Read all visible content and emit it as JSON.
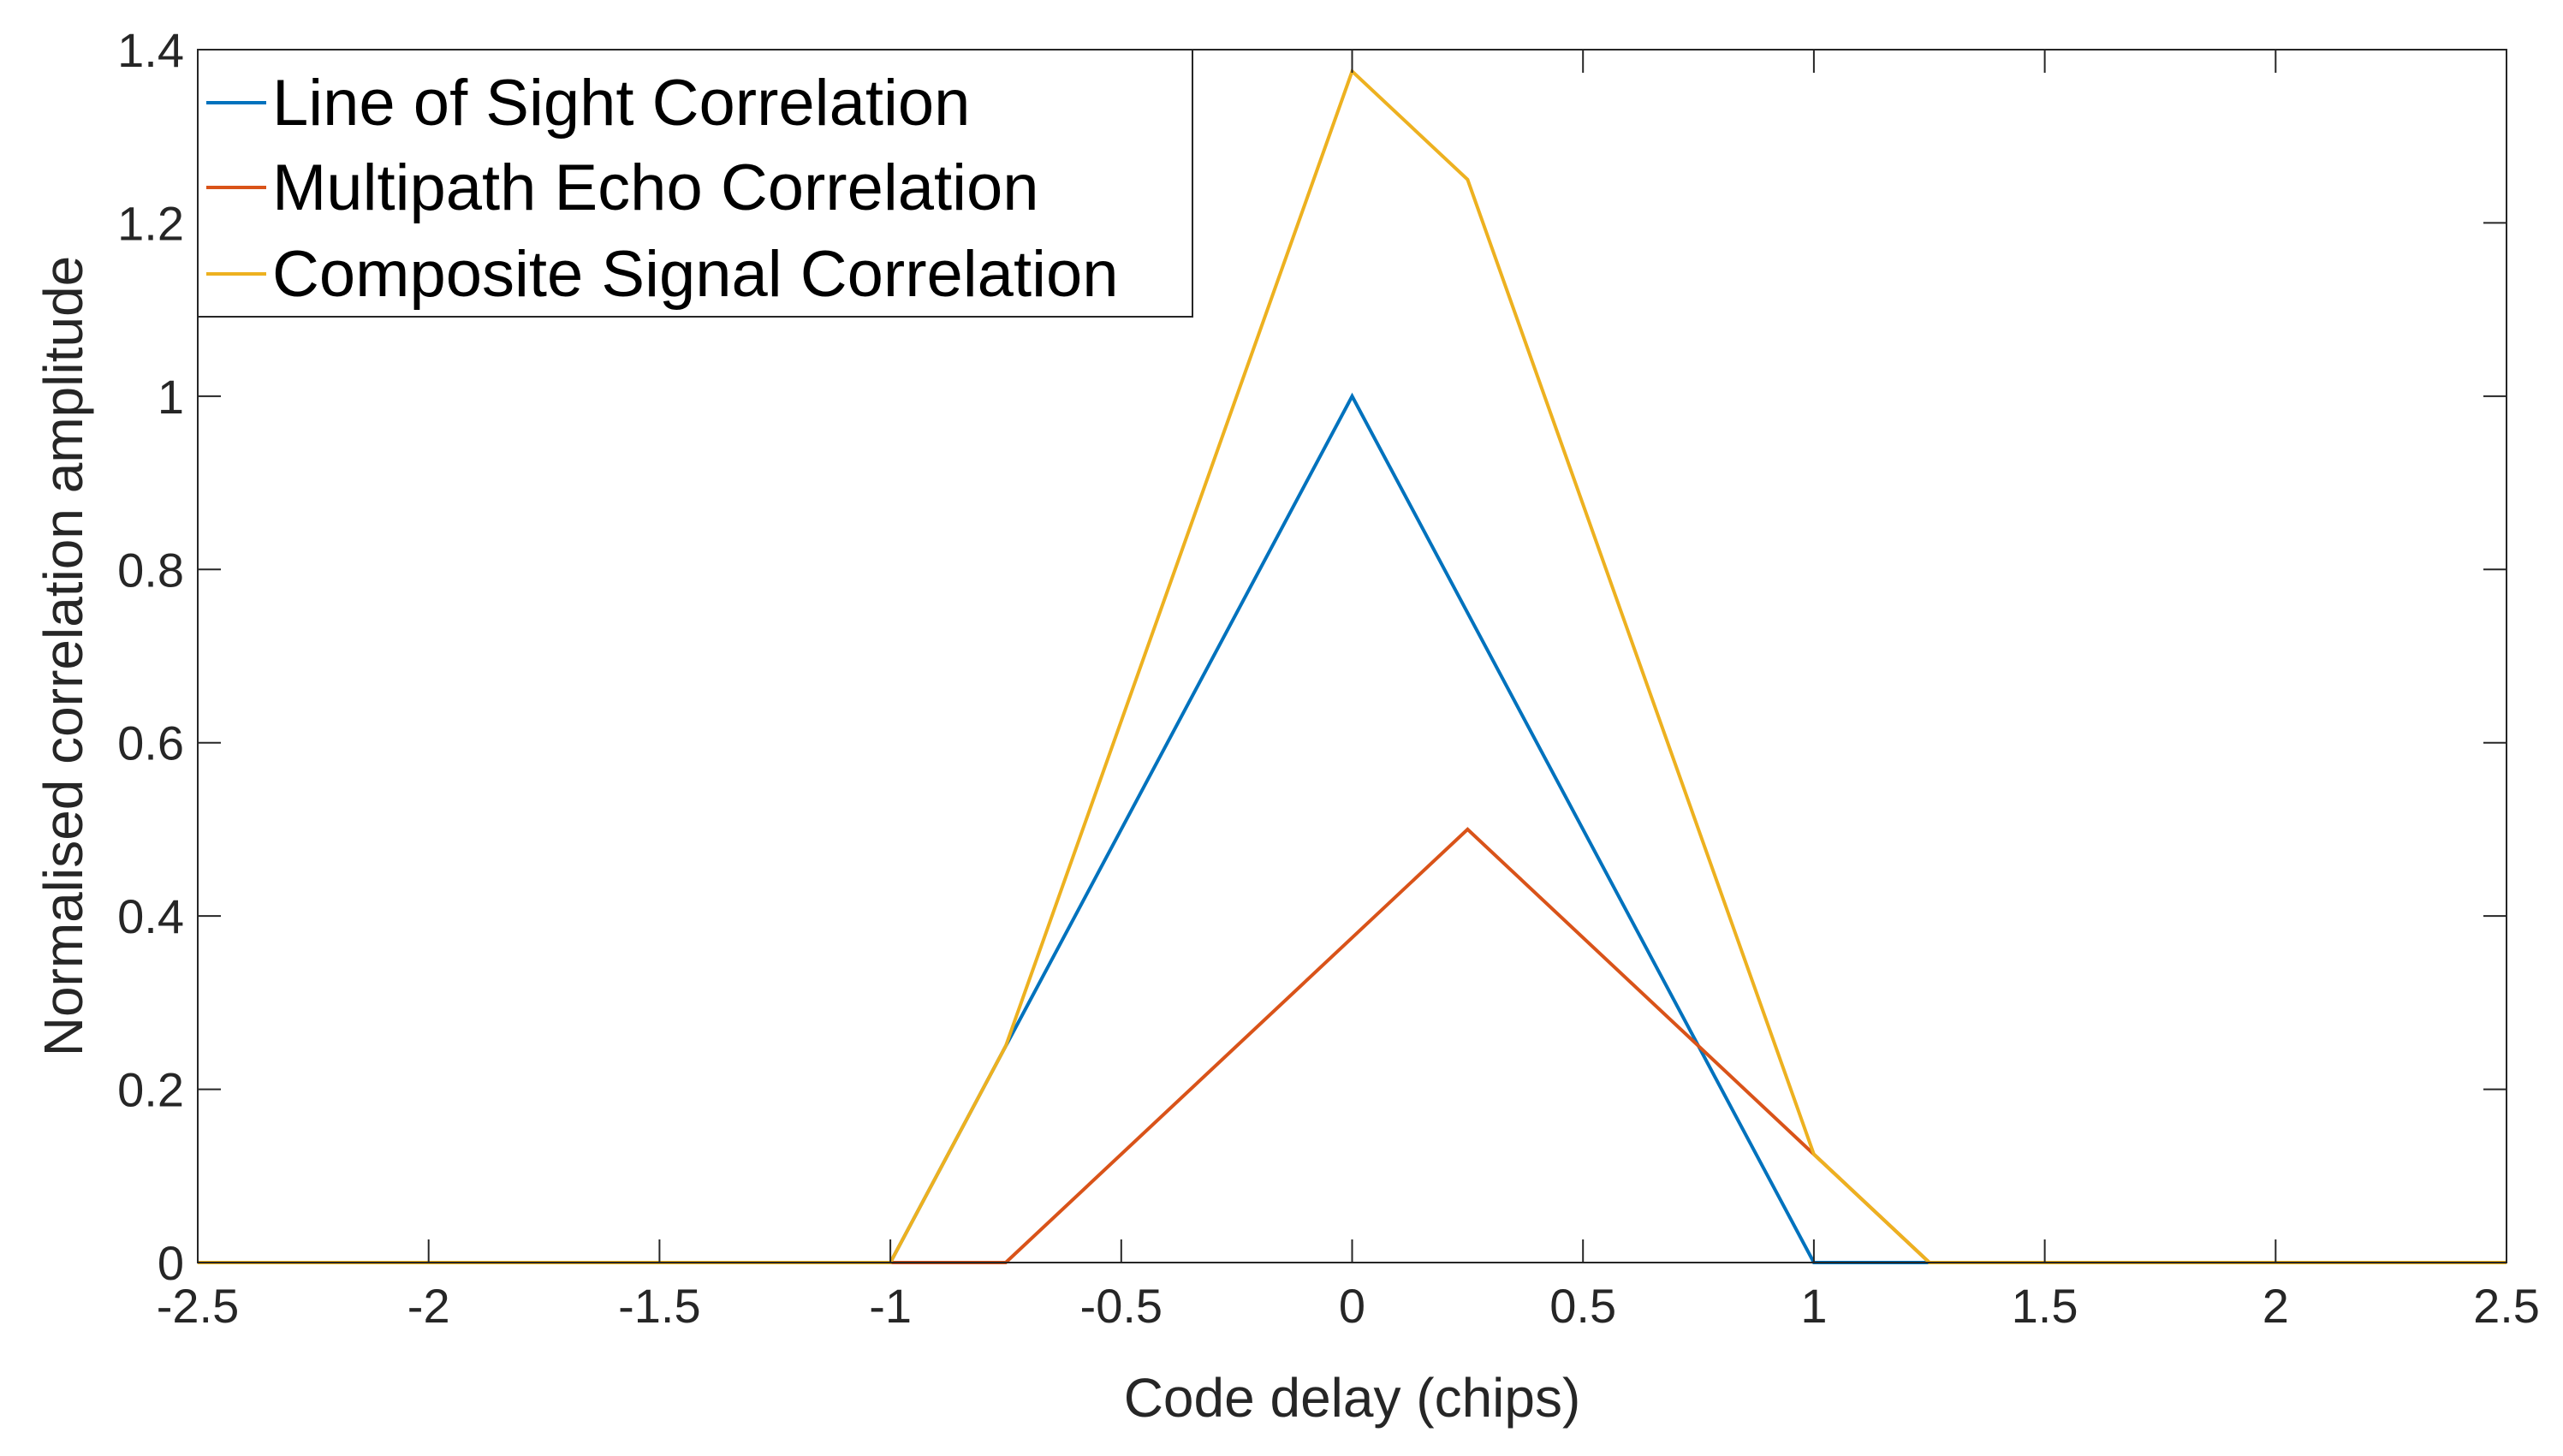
{
  "chart_data": {
    "type": "line",
    "title": "",
    "xlabel": "Code delay (chips)",
    "ylabel": "Normalised correlation amplitude",
    "xlim": [
      -2.5,
      2.5
    ],
    "ylim": [
      0,
      1.4
    ],
    "xticks": [
      -2.5,
      -2,
      -1.5,
      -1,
      -0.5,
      0,
      0.5,
      1,
      1.5,
      2,
      2.5
    ],
    "yticks": [
      0,
      0.2,
      0.4,
      0.6,
      0.8,
      1,
      1.2,
      1.4
    ],
    "xtick_labels": [
      "-2.5",
      "-2",
      "-1.5",
      "-1",
      "-0.5",
      "0",
      "0.5",
      "1",
      "1.5",
      "2",
      "2.5"
    ],
    "ytick_labels": [
      "0",
      "0.2",
      "0.4",
      "0.6",
      "0.8",
      "1",
      "1.2",
      "1.4"
    ],
    "grid": false,
    "legend_position": "top-left",
    "series": [
      {
        "name": "Line of Sight Correlation",
        "color": "#0072BD",
        "x": [
          -2.5,
          -1,
          -0.75,
          0,
          1,
          1.25,
          2.5
        ],
        "y": [
          0,
          0,
          0.25,
          1,
          0,
          0,
          0
        ]
      },
      {
        "name": "Multipath Echo Correlation",
        "color": "#D95319",
        "x": [
          -2.5,
          -0.75,
          0.25,
          1,
          1.25,
          2.5
        ],
        "y": [
          0,
          0,
          0.5,
          0.125,
          0,
          0
        ]
      },
      {
        "name": "Composite Signal Correlation",
        "color": "#EDB120",
        "x": [
          -2.5,
          -1,
          -0.75,
          0,
          0.25,
          1,
          1.25,
          2.5
        ],
        "y": [
          0,
          0,
          0.25,
          1.375,
          1.25,
          0.125,
          0,
          0
        ]
      }
    ]
  }
}
